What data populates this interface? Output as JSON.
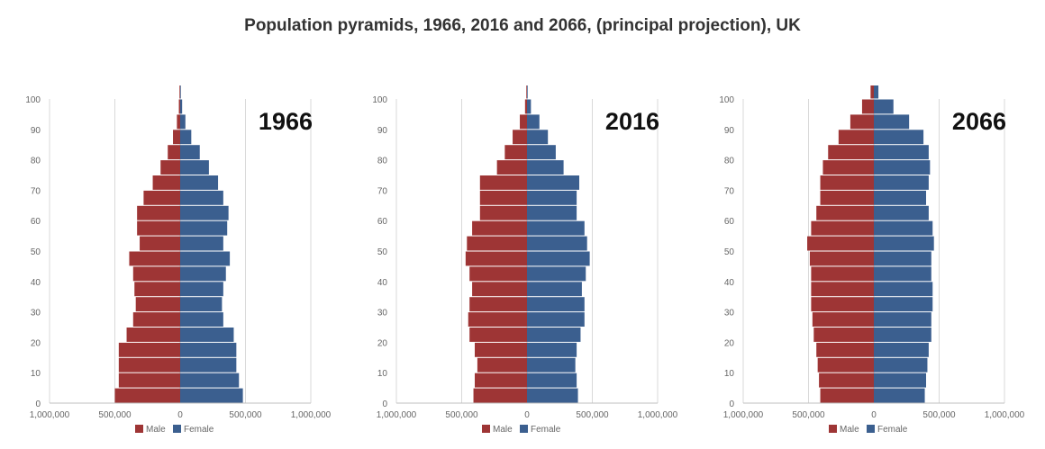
{
  "title": "Population pyramids, 1966, 2016 and 2066, (principal projection), UK",
  "colors": {
    "male": "#9e3535",
    "female": "#3b5f8f",
    "grid": "#d9d9d9",
    "text": "#666666"
  },
  "chart_data": [
    {
      "type": "bar",
      "orientation": "horizontal-pyramid",
      "year_label": "1966",
      "legend": [
        "Male",
        "Female"
      ],
      "x_ticks": [
        "1,000,000",
        "500,000",
        "0",
        "500,000",
        "1,000,000"
      ],
      "xlim": [
        -1000000,
        1000000
      ],
      "y_ticks": [
        "0",
        "10",
        "20",
        "30",
        "40",
        "50",
        "60",
        "70",
        "80",
        "90",
        "100"
      ],
      "ylim": [
        0,
        100
      ],
      "ages": [
        0,
        5,
        10,
        15,
        20,
        25,
        30,
        35,
        40,
        45,
        50,
        55,
        60,
        65,
        70,
        75,
        80,
        85,
        90,
        95,
        100
      ],
      "male": [
        500000,
        470000,
        470000,
        470000,
        410000,
        360000,
        340000,
        350000,
        360000,
        390000,
        310000,
        330000,
        330000,
        280000,
        210000,
        150000,
        95000,
        55000,
        25000,
        10000,
        5000
      ],
      "female": [
        480000,
        450000,
        430000,
        430000,
        410000,
        330000,
        320000,
        330000,
        350000,
        380000,
        330000,
        360000,
        370000,
        330000,
        290000,
        220000,
        150000,
        85000,
        40000,
        15000,
        5000
      ]
    },
    {
      "type": "bar",
      "orientation": "horizontal-pyramid",
      "year_label": "2016",
      "legend": [
        "Male",
        "Female"
      ],
      "x_ticks": [
        "1,000,000",
        "500,000",
        "0",
        "500,000",
        "1,000,000"
      ],
      "xlim": [
        -1000000,
        1000000
      ],
      "y_ticks": [
        "0",
        "10",
        "20",
        "30",
        "40",
        "50",
        "60",
        "70",
        "80",
        "90",
        "100"
      ],
      "ylim": [
        0,
        100
      ],
      "ages": [
        0,
        5,
        10,
        15,
        20,
        25,
        30,
        35,
        40,
        45,
        50,
        55,
        60,
        65,
        70,
        75,
        80,
        85,
        90,
        95,
        100
      ],
      "male": [
        410000,
        400000,
        380000,
        400000,
        440000,
        450000,
        440000,
        420000,
        440000,
        470000,
        460000,
        420000,
        360000,
        360000,
        360000,
        230000,
        170000,
        110000,
        55000,
        15000,
        5000
      ],
      "female": [
        390000,
        380000,
        370000,
        380000,
        410000,
        440000,
        440000,
        420000,
        450000,
        480000,
        460000,
        440000,
        380000,
        380000,
        400000,
        280000,
        220000,
        160000,
        95000,
        30000,
        5000
      ]
    },
    {
      "type": "bar",
      "orientation": "horizontal-pyramid",
      "year_label": "2066",
      "legend": [
        "Male",
        "Female"
      ],
      "x_ticks": [
        "1,000,000",
        "500,000",
        "0",
        "500,000",
        "1,000,000"
      ],
      "xlim": [
        -1000000,
        1000000
      ],
      "y_ticks": [
        "0",
        "10",
        "20",
        "30",
        "40",
        "50",
        "60",
        "70",
        "80",
        "90",
        "100"
      ],
      "ylim": [
        0,
        100
      ],
      "ages": [
        0,
        5,
        10,
        15,
        20,
        25,
        30,
        35,
        40,
        45,
        50,
        55,
        60,
        65,
        70,
        75,
        80,
        85,
        90,
        95,
        100
      ],
      "male": [
        410000,
        420000,
        430000,
        440000,
        460000,
        470000,
        480000,
        480000,
        480000,
        490000,
        510000,
        480000,
        440000,
        410000,
        410000,
        390000,
        350000,
        270000,
        180000,
        90000,
        25000
      ],
      "female": [
        390000,
        400000,
        410000,
        420000,
        440000,
        440000,
        450000,
        450000,
        440000,
        440000,
        460000,
        450000,
        420000,
        400000,
        420000,
        430000,
        420000,
        380000,
        270000,
        150000,
        35000
      ]
    }
  ]
}
